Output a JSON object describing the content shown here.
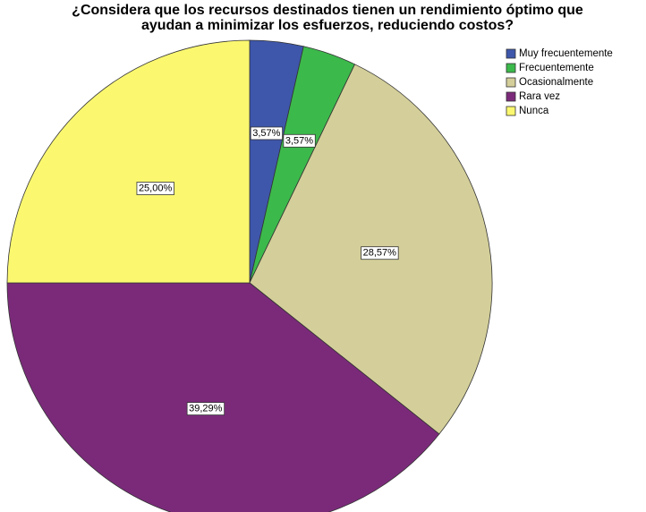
{
  "chart_data": {
    "type": "pie",
    "title": [
      "¿Considera que los recursos destinados tienen un rendimiento óptimo que",
      "ayudan a minimizar los esfuerzos, reduciendo costos?"
    ],
    "categories": [
      "Muy frecuentemente",
      "Frecuentemente",
      "Ocasionalmente",
      "Rara vez",
      "Nunca"
    ],
    "values": [
      3.57,
      3.57,
      28.57,
      39.29,
      25.0
    ],
    "value_labels": [
      "3,57%",
      "3,57%",
      "28,57%",
      "39,29%",
      "25,00%"
    ],
    "colors": [
      "#3e57ab",
      "#3cb94b",
      "#d4cf9a",
      "#7b2a7a",
      "#fbf870"
    ],
    "legend": "top-right"
  }
}
